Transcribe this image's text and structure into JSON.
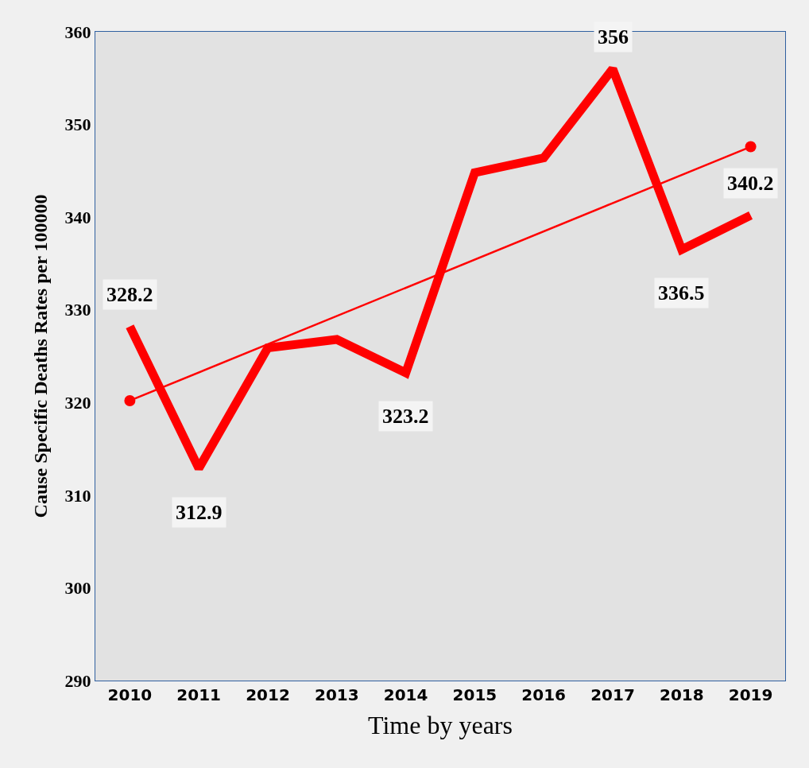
{
  "chart_data": {
    "type": "line",
    "xlabel": "Time by years",
    "ylabel": "Cause Specific Deaths Rates per 100000",
    "categories": [
      "2010",
      "2011",
      "2012",
      "2013",
      "2014",
      "2015",
      "2016",
      "2017",
      "2018",
      "2019"
    ],
    "series": [
      {
        "color": "#ff0000",
        "values": [
          328.2,
          312.9,
          325.9,
          326.8,
          323.2,
          344.8,
          346.4,
          356,
          336.5,
          340.2
        ],
        "value_labels": [
          "328.2",
          "312.9",
          null,
          null,
          "323.2",
          null,
          null,
          "356",
          "336.5",
          "340.2"
        ]
      },
      {
        "type": "line",
        "color": "#ff0000",
        "values": [
          320.2,
          null,
          null,
          null,
          null,
          null,
          null,
          null,
          null,
          347.6
        ],
        "marker": "circle"
      }
    ],
    "ylim": [
      290,
      360
    ],
    "yticks": [
      290,
      300,
      310,
      320,
      330,
      340,
      350,
      360
    ],
    "grid": false
  }
}
